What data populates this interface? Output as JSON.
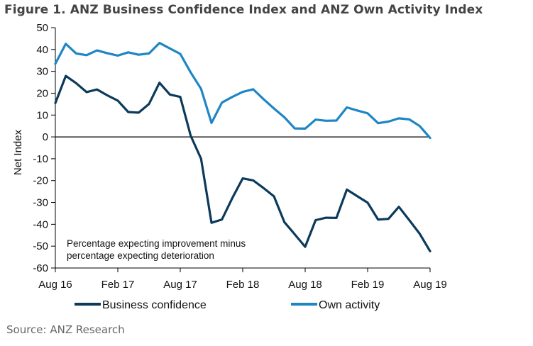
{
  "figure": {
    "title": "Figure 1. ANZ Business Confidence Index and ANZ Own Activity Index",
    "source": "Source: ANZ Research"
  },
  "chart_data": {
    "type": "line",
    "title": "ANZ Business Confidence Index and ANZ Own Activity Index",
    "xlabel": "",
    "ylabel": "Net Index",
    "ylim": [
      -60,
      50
    ],
    "yticks": [
      50,
      40,
      30,
      20,
      10,
      0,
      -10,
      -20,
      -30,
      -40,
      -50,
      -60
    ],
    "x_tick_labels": [
      "Aug 16",
      "Feb 17",
      "Aug 17",
      "Feb 18",
      "Aug 18",
      "Feb 19",
      "Aug 19"
    ],
    "x": [
      "Aug 16",
      "Sep 16",
      "Oct 16",
      "Nov 16",
      "Dec 16",
      "Jan 17",
      "Feb 17",
      "Mar 17",
      "Apr 17",
      "May 17",
      "Jun 17",
      "Jul 17",
      "Aug 17",
      "Sep 17",
      "Oct 17",
      "Nov 17",
      "Dec 17",
      "Jan 18",
      "Feb 18",
      "Mar 18",
      "Apr 18",
      "May 18",
      "Jun 18",
      "Jul 18",
      "Aug 18",
      "Sep 18",
      "Oct 18",
      "Nov 18",
      "Dec 18",
      "Jan 19",
      "Feb 19",
      "Mar 19",
      "Apr 19",
      "May 19",
      "Jun 19",
      "Jul 19",
      "Aug 19"
    ],
    "zero_line": true,
    "annotation": [
      "Percentage expecting improvement minus",
      "percentage expecting deterioration"
    ],
    "series": [
      {
        "name": "Business confidence",
        "color": "#0b3a5a",
        "values": [
          15.5,
          27.9,
          24.6,
          20.5,
          21.7,
          19.0,
          16.6,
          11.4,
          11.1,
          15.1,
          24.8,
          19.4,
          18.3,
          0.5,
          -10.0,
          -39.3,
          -37.8,
          -28.0,
          -19.0,
          -19.9,
          -23.4,
          -27.2,
          -39.0,
          -44.6,
          -50.3,
          -38.1,
          -37.0,
          -37.1,
          -24.1,
          -27.1,
          -30.1,
          -37.8,
          -37.5,
          -32.0,
          -38.1,
          -44.3,
          -52.3
        ]
      },
      {
        "name": "Own activity",
        "color": "#1e86c5",
        "values": [
          33.5,
          42.6,
          38.2,
          37.4,
          39.6,
          38.3,
          37.2,
          38.7,
          37.6,
          38.2,
          43.0,
          40.5,
          38.0,
          29.5,
          22.0,
          6.4,
          15.7,
          18.3,
          20.6,
          21.8,
          17.3,
          13.0,
          9.0,
          3.9,
          3.8,
          7.9,
          7.4,
          7.5,
          13.5,
          12.1,
          10.8,
          6.3,
          7.0,
          8.5,
          8.0,
          5.0,
          -0.5
        ]
      }
    ]
  }
}
